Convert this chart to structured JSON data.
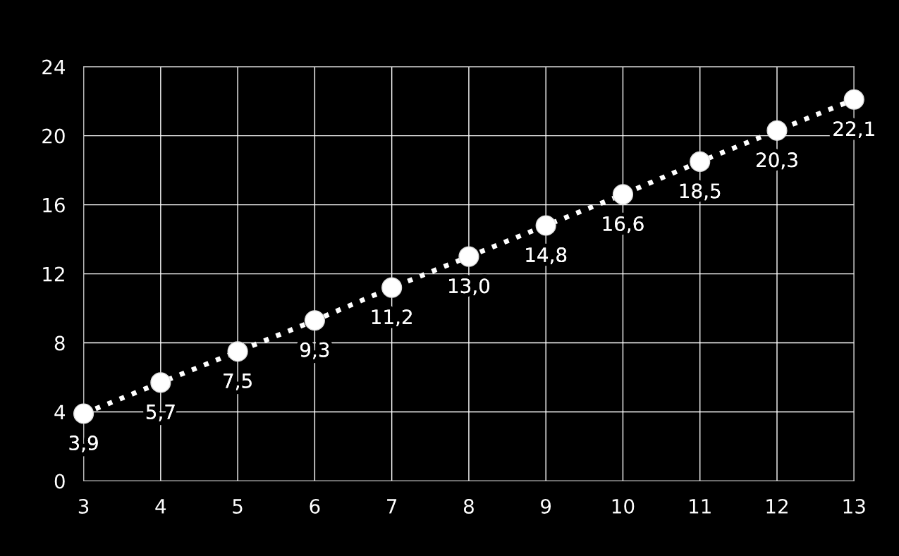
{
  "chart_data": {
    "type": "line",
    "x": [
      3,
      4,
      5,
      6,
      7,
      8,
      9,
      10,
      11,
      12,
      13
    ],
    "series": [
      {
        "color": "#ffffff",
        "values": [
          3.9,
          5.7,
          7.5,
          9.3,
          11.2,
          13.0,
          14.8,
          16.6,
          18.5,
          20.3,
          22.1
        ],
        "value_labels": [
          "3,9",
          "5,7",
          "7,5",
          "9,3",
          "11,2",
          "13,0",
          "14,8",
          "16,6",
          "18,5",
          "20,3",
          "22,1"
        ]
      }
    ],
    "xlim": [
      3,
      13
    ],
    "xticks": [
      3,
      4,
      5,
      6,
      7,
      8,
      9,
      10,
      11,
      12,
      13
    ],
    "ylim": [
      0,
      24
    ],
    "yticks": [
      0,
      4,
      8,
      12,
      16,
      20,
      24
    ],
    "grid": true,
    "marker": "circle",
    "line_style": "dotted"
  }
}
